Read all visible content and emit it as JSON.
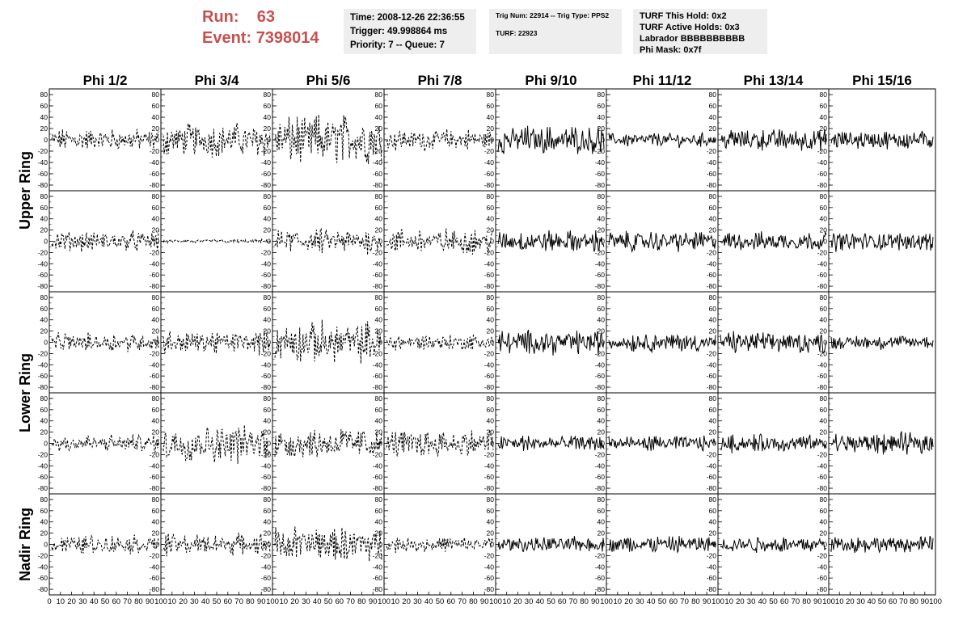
{
  "header": {
    "run_label": "Run:",
    "run_value": "63",
    "event_label": "Event:",
    "event_value": "7398014",
    "time": "Time: 2008-12-26 22:36:55",
    "trigger": "Trigger: 49.998864 ms",
    "priority": "Priority: 7 -- Queue: 7",
    "trig_num": "Trig Num: 22914 -- Trig Type: PPS2",
    "turf": "TURF: 22923",
    "turf_hold": "TURF This Hold: 0x2",
    "turf_active": "TURF Active Holds: 0x3",
    "labrador": "Labrador BBBBBBBBBB",
    "phi_mask": "Phi Mask: 0x7f"
  },
  "chart_data": {
    "type": "line",
    "layout": "grid of waveform panels",
    "columns": [
      "Phi 1/2",
      "Phi 3/4",
      "Phi 5/6",
      "Phi 7/8",
      "Phi 9/10",
      "Phi 11/12",
      "Phi 13/14",
      "Phi 15/16"
    ],
    "rows": [
      "Upper Ring",
      "Lower Ring",
      "Nadir Ring"
    ],
    "ylim": [
      -90,
      90
    ],
    "y_ticks": [
      -80,
      -60,
      -40,
      -20,
      0,
      20,
      40,
      60,
      80
    ],
    "xlim": [
      0,
      100
    ],
    "x_ticks": [
      0,
      10,
      20,
      30,
      40,
      50,
      60,
      70,
      80,
      90,
      100
    ],
    "x_axis_label_text": "0 10 20 30 40 50 60 70 80 90 100",
    "panel_rows": 5,
    "dashed_columns": [
      0,
      1,
      2,
      3
    ],
    "amplitudes": [
      [
        17,
        26,
        40,
        17,
        22,
        11,
        18,
        15
      ],
      [
        16,
        3,
        20,
        20,
        17,
        16,
        15,
        15
      ],
      [
        15,
        18,
        33,
        13,
        19,
        15,
        17,
        11
      ],
      [
        14,
        30,
        26,
        22,
        13,
        12,
        14,
        17
      ],
      [
        15,
        17,
        28,
        12,
        12,
        14,
        13,
        13
      ]
    ]
  }
}
